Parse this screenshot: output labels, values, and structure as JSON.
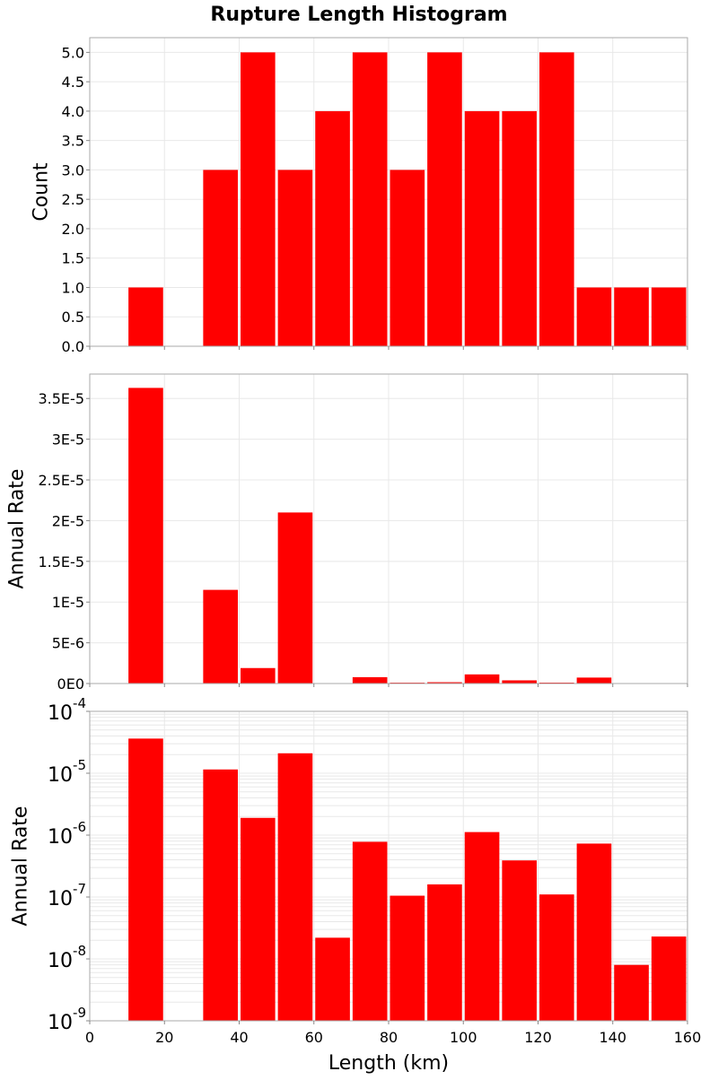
{
  "title": "Rupture Length Histogram",
  "colors": {
    "bar": "#ff0000",
    "grid": "#e8e8e8",
    "frame": "#aaaaaa",
    "background": "#ffffff"
  },
  "chart_data": {
    "type": "bar",
    "title": "Rupture Length Histogram",
    "xlabel": "Length (km)",
    "xlim": [
      0,
      160
    ],
    "x_ticks": [
      0,
      20,
      40,
      60,
      80,
      100,
      120,
      140,
      160
    ],
    "x_tick_labels": [
      "0",
      "20",
      "40",
      "60",
      "80",
      "100",
      "120",
      "140",
      "160"
    ],
    "bin_width": 10,
    "bin_centers": [
      15,
      35,
      45,
      55,
      65,
      75,
      85,
      95,
      105,
      115,
      125,
      135,
      145,
      155
    ],
    "panels": [
      {
        "ylabel": "Count",
        "scale": "linear",
        "ylim": [
          0,
          5.25
        ],
        "y_ticks": [
          0,
          0.5,
          1,
          1.5,
          2,
          2.5,
          3,
          3.5,
          4,
          4.5,
          5
        ],
        "y_tick_labels": [
          "0.0",
          "0.5",
          "1.0",
          "1.5",
          "2.0",
          "2.5",
          "3.0",
          "3.5",
          "4.0",
          "4.5",
          "5.0"
        ],
        "values": [
          1,
          3,
          5,
          3,
          4,
          5,
          3,
          5,
          4,
          4,
          5,
          1,
          1,
          1
        ]
      },
      {
        "ylabel": "Annual Rate",
        "scale": "linear",
        "ylim": [
          0,
          3.8e-05
        ],
        "y_ticks": [
          0,
          5e-06,
          1e-05,
          1.5e-05,
          2e-05,
          2.5e-05,
          3e-05,
          3.5e-05
        ],
        "y_tick_labels": [
          "0E0",
          "5E-6",
          "1E-5",
          "1.5E-5",
          "2E-5",
          "2.5E-5",
          "3E-5",
          "3.5E-5"
        ],
        "values": [
          3.63e-05,
          1.15e-05,
          1.9e-06,
          2.1e-05,
          2.2e-08,
          7.8e-07,
          1.05e-07,
          1.6e-07,
          1.12e-06,
          3.9e-07,
          1.1e-07,
          7.3e-07,
          8e-09,
          2.3e-08
        ]
      },
      {
        "ylabel": "Annual Rate",
        "scale": "log",
        "ylim": [
          1e-09,
          0.0001
        ],
        "y_ticks": [
          1e-09,
          1e-08,
          1e-07,
          1e-06,
          1e-05,
          0.0001
        ],
        "y_tick_bases": [
          "10",
          "10",
          "10",
          "10",
          "10",
          "10"
        ],
        "y_tick_exponents": [
          "-9",
          "-8",
          "-7",
          "-6",
          "-5",
          "-4"
        ],
        "values": [
          3.63e-05,
          1.15e-05,
          1.9e-06,
          2.1e-05,
          2.2e-08,
          7.8e-07,
          1.05e-07,
          1.6e-07,
          1.12e-06,
          3.9e-07,
          1.1e-07,
          7.3e-07,
          8e-09,
          2.3e-08
        ]
      }
    ]
  }
}
